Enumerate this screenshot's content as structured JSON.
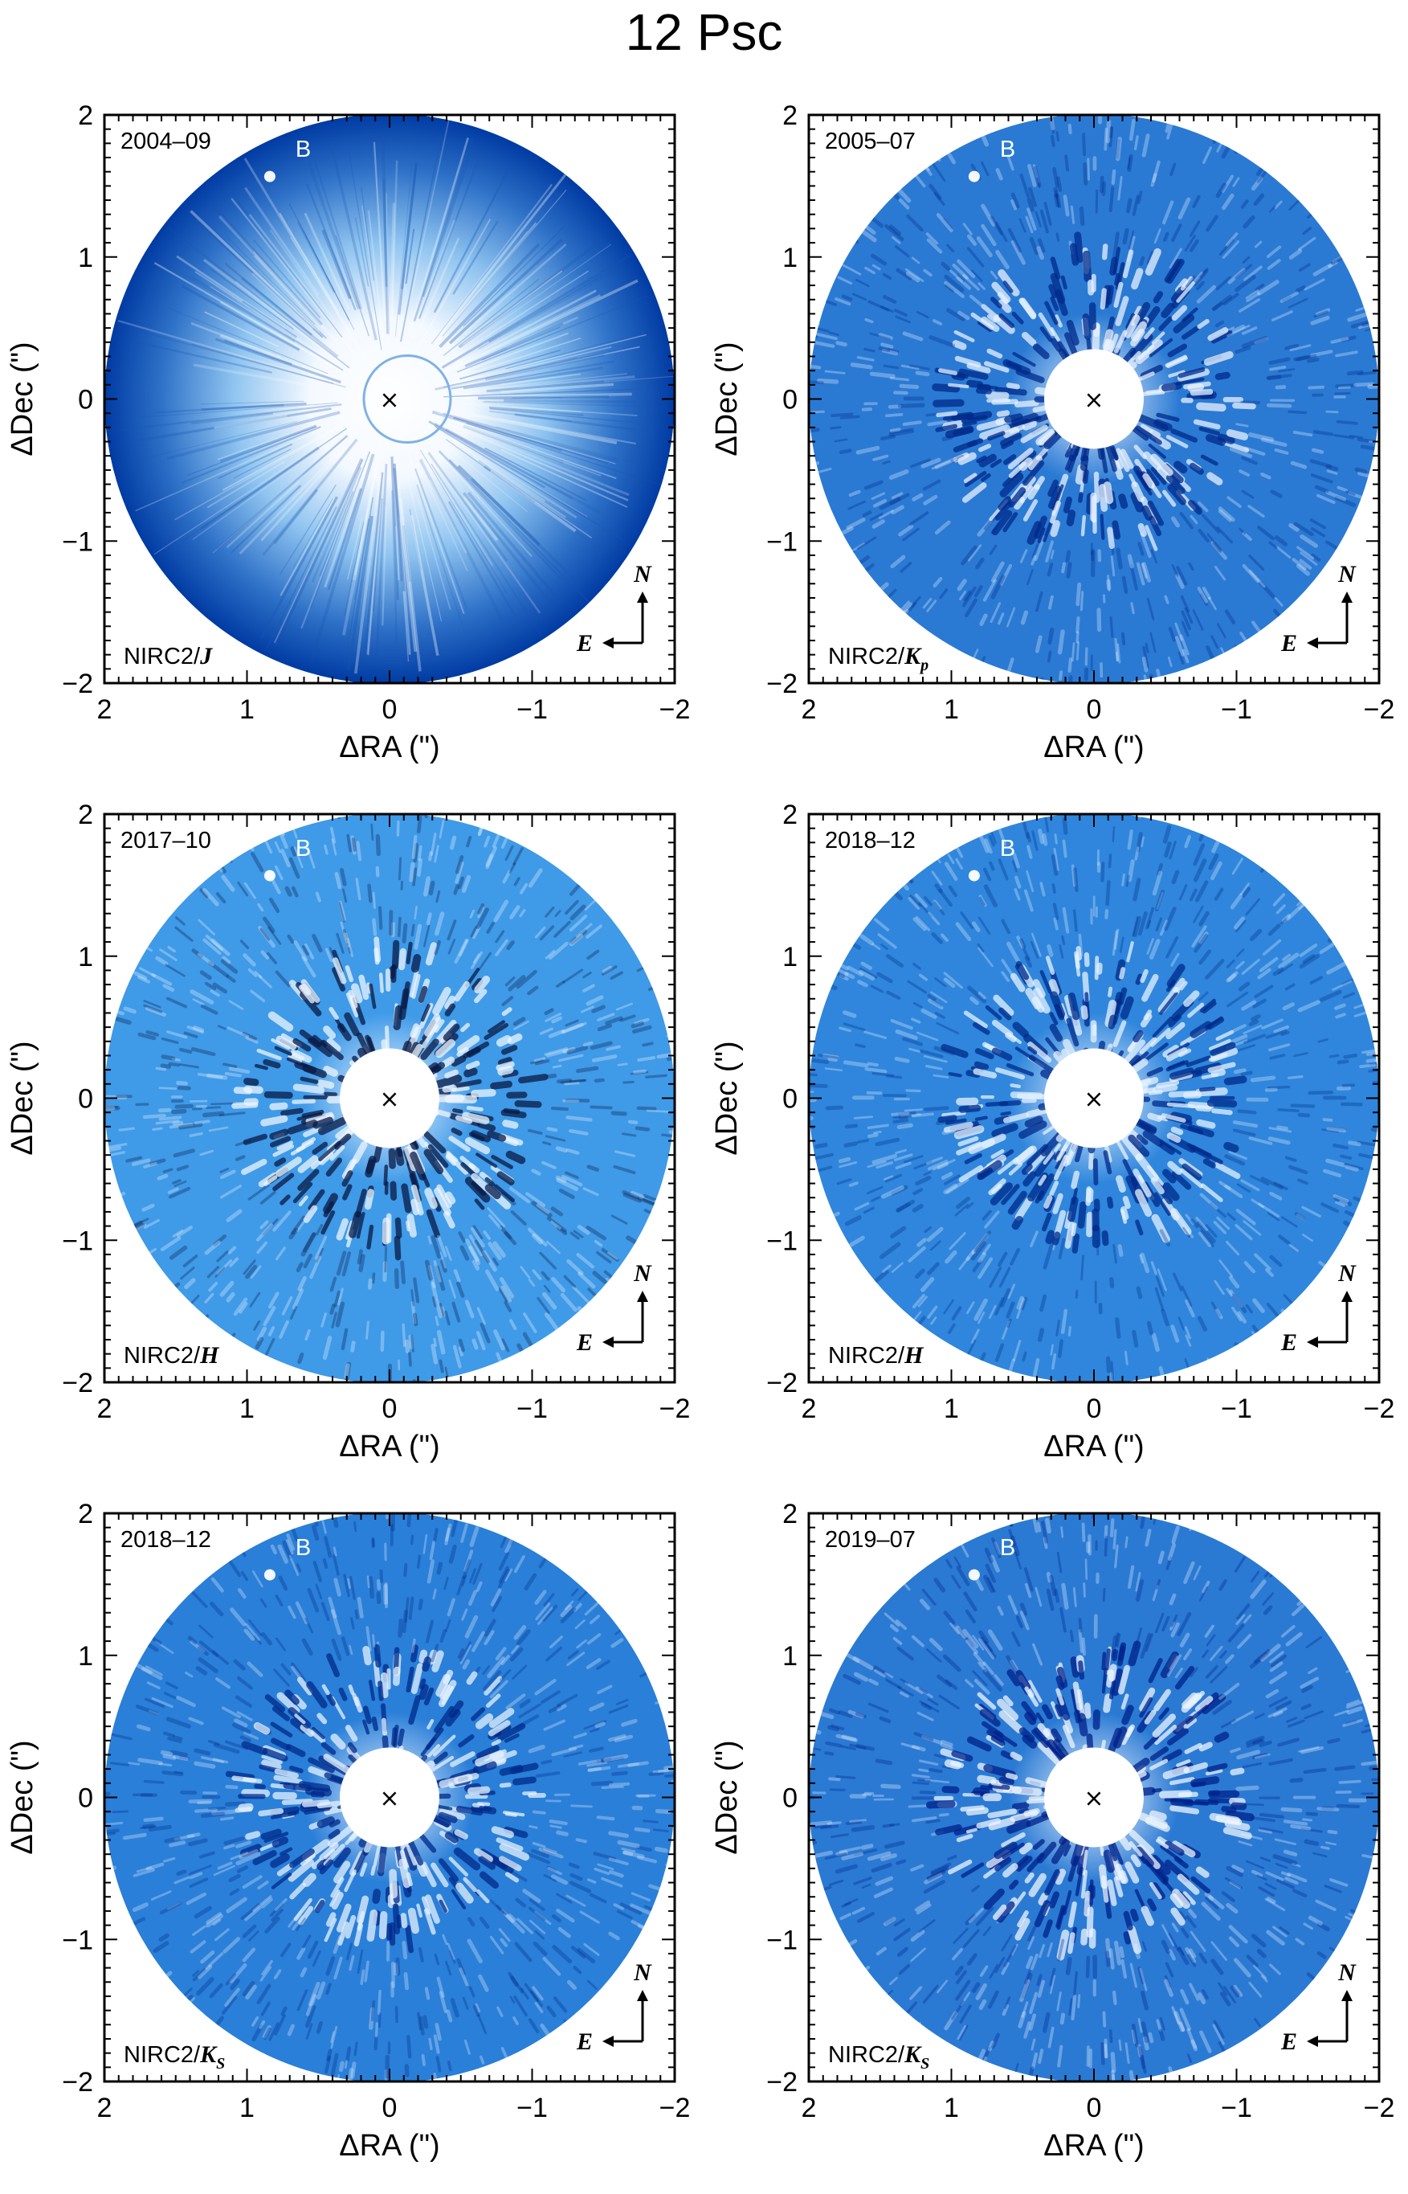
{
  "figure": {
    "title": "12 Psc",
    "x_axis_label": "ΔRA (\")",
    "y_axis_label": "ΔDec (\")",
    "x_ticks": [
      "2",
      "1",
      "0",
      "−1",
      "−2"
    ],
    "y_ticks": [
      "2",
      "1",
      "0",
      "−1",
      "−2"
    ],
    "x_range": [
      2,
      -2
    ],
    "y_range": [
      -2,
      2
    ],
    "companion_label": "B",
    "star_marker": "×",
    "compass": {
      "north": "N",
      "east": "E"
    }
  },
  "panels": [
    {
      "date": "2004–09",
      "instrument": "NIRC2/",
      "band": "J",
      "band_sub": "",
      "style": "raw",
      "colors": {
        "center": "#ffffff",
        "mid": "#8fc4f0",
        "edge": "#003ba3"
      }
    },
    {
      "date": "2005–07",
      "instrument": "NIRC2/",
      "band": "K",
      "band_sub": "p",
      "style": "subtracted",
      "colors": {
        "base": "#2a7ad4",
        "light": "#e8f2ff",
        "dark": "#002a8a"
      }
    },
    {
      "date": "2017–10",
      "instrument": "NIRC2/",
      "band": "H",
      "band_sub": "",
      "style": "subtracted",
      "colors": {
        "base": "#3f9ae8",
        "light": "#eef6ff",
        "dark": "#0a1a44"
      }
    },
    {
      "date": "2018–12",
      "instrument": "NIRC2/",
      "band": "H",
      "band_sub": "",
      "style": "subtracted",
      "colors": {
        "base": "#2f86dc",
        "light": "#e6f1ff",
        "dark": "#002a8a"
      }
    },
    {
      "date": "2018–12",
      "instrument": "NIRC2/",
      "band": "K",
      "band_sub": "S",
      "style": "subtracted",
      "colors": {
        "base": "#2a7fd8",
        "light": "#e6f1ff",
        "dark": "#002a8a"
      }
    },
    {
      "date": "2019–07",
      "instrument": "NIRC2/",
      "band": "K",
      "band_sub": "S",
      "style": "subtracted",
      "colors": {
        "base": "#2a7ad4",
        "light": "#eef6ff",
        "dark": "#00228a"
      }
    }
  ]
}
